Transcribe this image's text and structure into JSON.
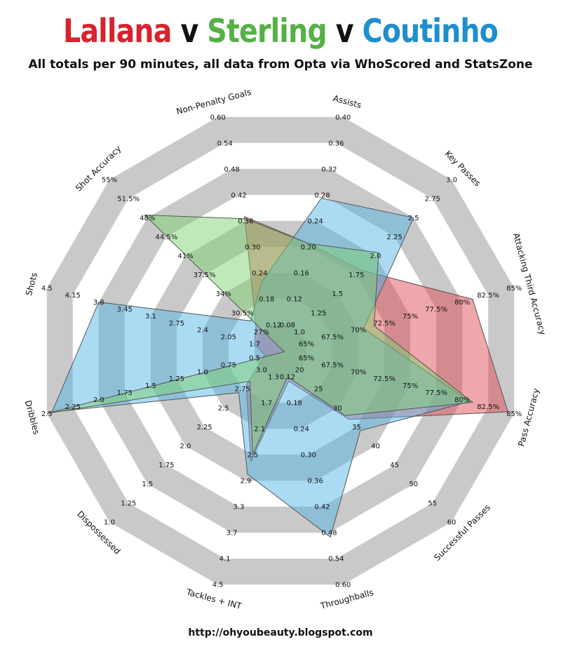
{
  "title": {
    "parts": [
      {
        "text": "Lallana",
        "color": "#d7232d"
      },
      {
        "text": " v ",
        "color": "#111111"
      },
      {
        "text": "Sterling",
        "color": "#55b146"
      },
      {
        "text": " v ",
        "color": "#111111"
      },
      {
        "text": "Coutinho",
        "color": "#1f8fcc"
      }
    ]
  },
  "subtitle": "All totals per 90 minutes, all data from Opta via WhoScored and StatsZone",
  "footer": "http://ohyoubeauty.blogspot.com",
  "chart_data": {
    "type": "radar",
    "axes": [
      {
        "label": "Assists",
        "ticks": [
          "0.08",
          "0.12",
          "0.16",
          "0.20",
          "0.24",
          "0.28",
          "0.32",
          "0.36",
          "0.40"
        ],
        "min": 0.08,
        "max": 0.4
      },
      {
        "label": "Key Passes",
        "ticks": [
          "1.0",
          "1.25",
          "1.5",
          "1.75",
          "2.0",
          "2.25",
          "2.5",
          "2.75",
          "3.0"
        ],
        "min": 1.0,
        "max": 3.0
      },
      {
        "label": "Attacking Third Accuracy",
        "ticks": [
          "65%",
          "67.5%",
          "70%",
          "72.5%",
          "75%",
          "77.5%",
          "80%",
          "82.5%",
          "85%"
        ],
        "min": 65,
        "max": 85
      },
      {
        "label": "Pass Accuracy",
        "ticks": [
          "65%",
          "67.5%",
          "70%",
          "72.5%",
          "75%",
          "77.5%",
          "80%",
          "82.5%",
          "85%"
        ],
        "min": 65,
        "max": 85
      },
      {
        "label": "Successful Passes",
        "ticks": [
          "20",
          "25",
          "30",
          "35",
          "40",
          "45",
          "50",
          "55",
          "60"
        ],
        "min": 20,
        "max": 60
      },
      {
        "label": "Throughballs",
        "ticks": [
          "0.12",
          "0.18",
          "0.24",
          "0.30",
          "0.36",
          "0.42",
          "0.48",
          "0.54",
          "0.60"
        ],
        "min": 0.12,
        "max": 0.6
      },
      {
        "label": "Tackles + INT",
        "ticks": [
          "1.3",
          "1.7",
          "2.1",
          "2.5",
          "2.9",
          "3.3",
          "3.7",
          "4.1",
          "4.5"
        ],
        "min": 1.3,
        "max": 4.5
      },
      {
        "label": "Dispossessed",
        "ticks": [
          "3.0",
          "2.75",
          "2.5",
          "2.25",
          "2.0",
          "1.75",
          "1.5",
          "1.25",
          "1.0"
        ],
        "min": 3.0,
        "max": 1.0
      },
      {
        "label": "Dribbles",
        "ticks": [
          "0.5",
          "0.75",
          "1.0",
          "1.25",
          "1.5",
          "1.75",
          "2.0",
          "2.25",
          "2.5"
        ],
        "min": 0.5,
        "max": 2.5
      },
      {
        "label": "Shots",
        "ticks": [
          "1.7",
          "2.05",
          "2.4",
          "2.75",
          "3.1",
          "3.45",
          "3.8",
          "4.15",
          "4.5"
        ],
        "min": 1.7,
        "max": 4.5
      },
      {
        "label": "Shot Accuracy",
        "ticks": [
          "27%",
          "30.5%",
          "34%",
          "37.5%",
          "41%",
          "44.5%",
          "48%",
          "51.5%",
          "55%"
        ],
        "min": 27,
        "max": 55
      },
      {
        "label": "Non-Penalty Goals",
        "ticks": [
          "0.12",
          "0.18",
          "0.24",
          "0.30",
          "0.36",
          "0.42",
          "0.48",
          "0.54",
          "0.60"
        ],
        "min": 0.12,
        "max": 0.6
      }
    ],
    "series": [
      {
        "name": "Lallana",
        "color": "#e0474f",
        "values": [
          0.205,
          1.81,
          81,
          84.4,
          33,
          0.13,
          2.6,
          2.8,
          0.4,
          1.7,
          28,
          0.37
        ]
      },
      {
        "name": "Coutinho",
        "color": "#4fb3e6",
        "values": [
          0.275,
          2.5,
          70.5,
          80.7,
          36,
          0.49,
          2.8,
          2.7,
          2.45,
          3.8,
          29,
          0.22
        ]
      },
      {
        "name": "Sterling",
        "color": "#7cd06f",
        "values": [
          0.205,
          2.04,
          71.5,
          81,
          32,
          0.12,
          2.5,
          2.85,
          2.5,
          1.3,
          48.5,
          0.365
        ]
      }
    ]
  }
}
